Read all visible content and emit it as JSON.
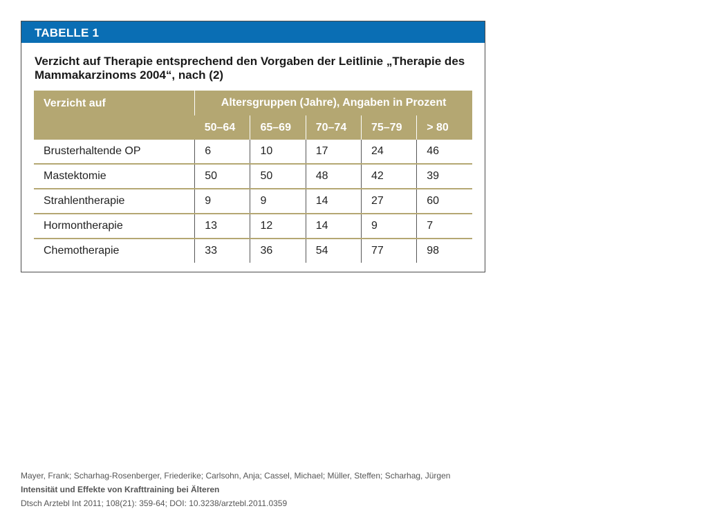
{
  "figure": {
    "label": "TABELLE 1",
    "title": "Verzicht auf Therapie entsprechend den Vorgaben der Leitlinie „Therapie des Mammakarzinoms 2004“, nach (2)",
    "colors": {
      "header_bar": "#0a6eb4",
      "table_header": "#b4a772"
    }
  },
  "table": {
    "row_header": "Verzicht auf",
    "group_header": "Altersgruppen (Jahre), Angaben in Prozent",
    "age_groups": [
      "50–64",
      "65–69",
      "70–74",
      "75–79",
      "> 80"
    ],
    "rows": [
      {
        "label": "Brusterhaltende OP",
        "values": [
          "6",
          "10",
          "17",
          "24",
          "46"
        ]
      },
      {
        "label": "Mastektomie",
        "values": [
          "50",
          "50",
          "48",
          "42",
          "39"
        ]
      },
      {
        "label": "Strahlentherapie",
        "values": [
          "9",
          "9",
          "14",
          "27",
          "60"
        ]
      },
      {
        "label": "Hormontherapie",
        "values": [
          "13",
          "12",
          "14",
          "9",
          "7"
        ]
      },
      {
        "label": "Chemotherapie",
        "values": [
          "33",
          "36",
          "54",
          "77",
          "98"
        ]
      }
    ]
  },
  "citation": {
    "authors": "Mayer, Frank; Scharhag-Rosenberger, Friederike; Carlsohn, Anja; Cassel, Michael; Müller, Steffen; Scharhag, Jürgen",
    "title": "Intensität und Effekte von Krafttraining bei Älteren",
    "source": "Dtsch Arztebl Int 2011; 108(21): 359-64; DOI: 10.3238/arztebl.2011.0359"
  }
}
